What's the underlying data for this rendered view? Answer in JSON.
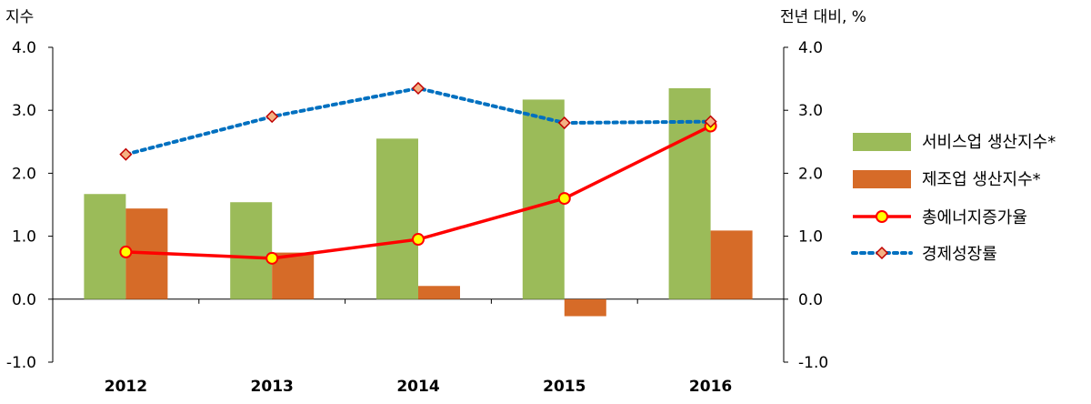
{
  "chart_data": {
    "type": "bar",
    "categories": [
      "2012",
      "2013",
      "2014",
      "2015",
      "2016"
    ],
    "y_left_label": "지수",
    "y_right_label": "전년 대비, %",
    "ylim": [
      -1.0,
      4.0
    ],
    "yticks": [
      "4.0",
      "3.0",
      "2.0",
      "1.0",
      "0.0",
      "-1.0"
    ],
    "ytick_values": [
      4.0,
      3.0,
      2.0,
      1.0,
      0.0,
      -1.0
    ],
    "series": [
      {
        "name": "서비스업 생산지수*",
        "kind": "bar",
        "color": "#9bbb59",
        "values": [
          1.67,
          1.54,
          2.55,
          3.17,
          3.35
        ]
      },
      {
        "name": "제조업 생산지수*",
        "kind": "bar",
        "color": "#d66b28",
        "values": [
          1.44,
          0.74,
          0.21,
          -0.27,
          1.09
        ]
      },
      {
        "name": "총에너지증가율",
        "kind": "line",
        "color": "#ff0000",
        "marker_fill": "#ffff00",
        "values": [
          0.75,
          0.65,
          0.95,
          1.6,
          2.75
        ]
      },
      {
        "name": "경제성장률",
        "kind": "dotted-line",
        "color": "#0070c0",
        "marker_fill": "#f4b183",
        "marker_stroke": "#c00000",
        "values": [
          2.3,
          2.9,
          3.35,
          2.8,
          2.82
        ]
      }
    ],
    "legend_position": "right",
    "grid": false
  }
}
